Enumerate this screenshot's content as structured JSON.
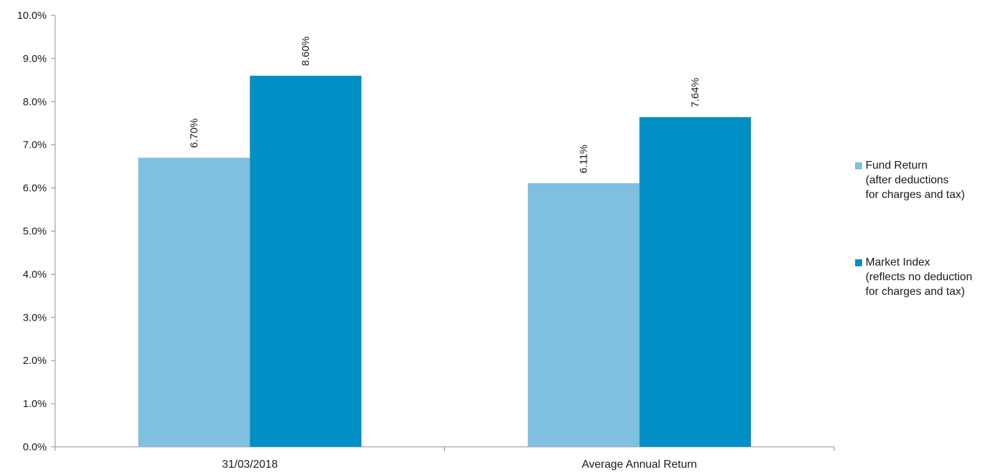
{
  "chart_data": {
    "type": "bar",
    "categories": [
      "31/03/2018",
      "Average Annual Return"
    ],
    "series": [
      {
        "name": "Fund Return\n(after deductions\nfor charges and tax)",
        "values": [
          6.7,
          6.11
        ],
        "labels": [
          "6.70%",
          "6.11%"
        ],
        "color": "#7fbfdf"
      },
      {
        "name": "Market Index\n(reflects no deduction\nfor charges and tax)",
        "values": [
          8.6,
          7.64
        ],
        "labels": [
          "8.60%",
          "7.64%"
        ],
        "color": "#008fc5"
      }
    ],
    "ylim": [
      0,
      10
    ],
    "yticks": [
      0,
      1,
      2,
      3,
      4,
      5,
      6,
      7,
      8,
      9,
      10
    ],
    "ytick_labels": [
      "0.0%",
      "1.0%",
      "2.0%",
      "3.0%",
      "4.0%",
      "5.0%",
      "6.0%",
      "7.0%",
      "8.0%",
      "9.0%",
      "10.0%"
    ],
    "title": "",
    "xlabel": "",
    "ylabel": "",
    "grid": false,
    "legend_position": "right"
  }
}
